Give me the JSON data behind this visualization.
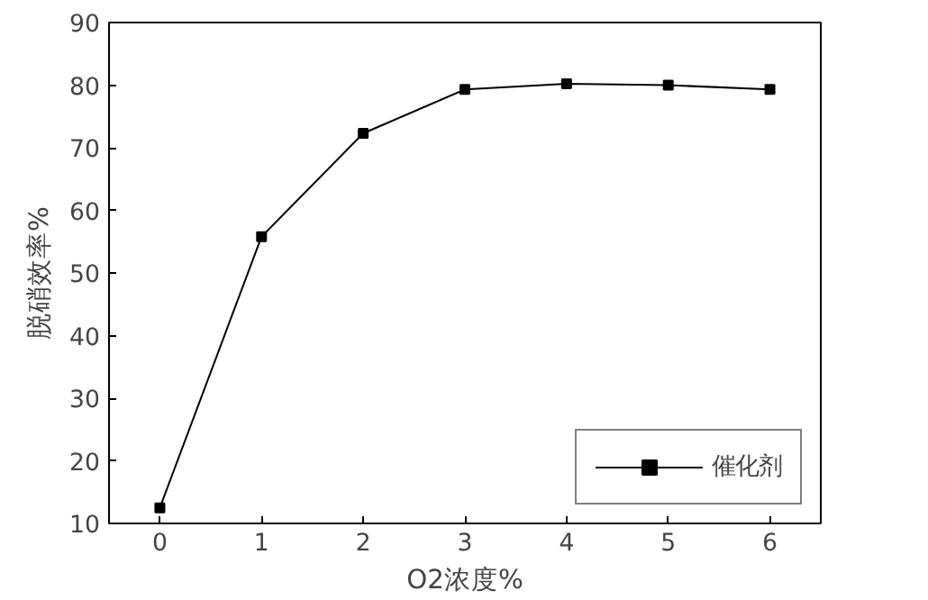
{
  "chart_data": {
    "type": "line",
    "xlabel": "O2浓度%",
    "ylabel": "脱硝效率%",
    "x": [
      0,
      1,
      2,
      3,
      4,
      5,
      6
    ],
    "series": [
      {
        "name": "催化剂",
        "color": "#000000",
        "values": [
          12.5,
          55.8,
          72.3,
          79.3,
          80.2,
          80.0,
          79.3
        ]
      }
    ],
    "xlim": [
      -0.5,
      6.5
    ],
    "xticks": [
      0,
      1,
      2,
      3,
      4,
      5,
      6
    ],
    "ylim": [
      10,
      90
    ],
    "yticks": [
      10,
      20,
      30,
      40,
      50,
      60,
      70,
      80,
      90
    ],
    "grid": false,
    "legend": "bottom right",
    "marker": "square",
    "line_style": "solid"
  }
}
